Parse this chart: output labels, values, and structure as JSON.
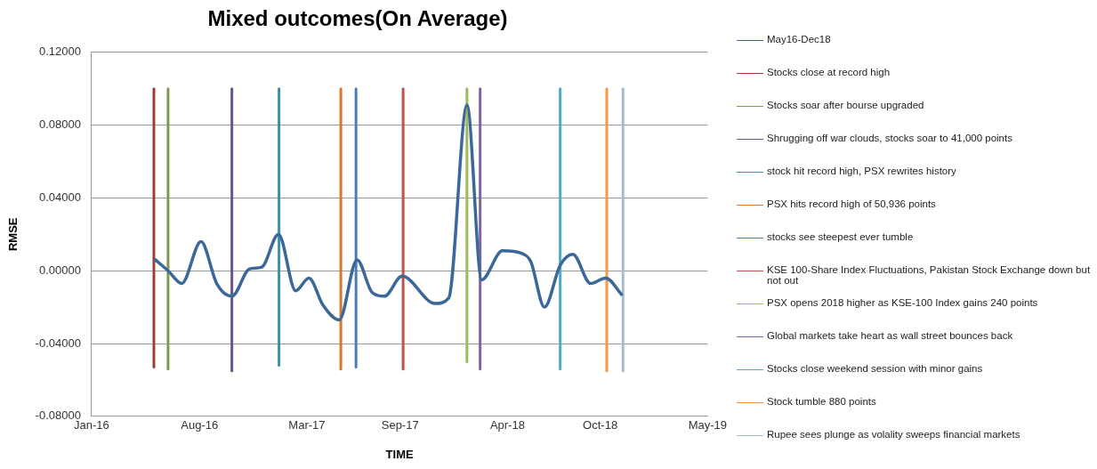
{
  "chart_data": {
    "type": "line",
    "title": "Mixed outcomes(On Average)",
    "xlabel": "TIME",
    "ylabel": "RMSE",
    "legend": "right",
    "grid": "y",
    "marker": "none",
    "line_style": "solid",
    "xlim": [
      "2016-01-01",
      "2019-05-01"
    ],
    "xticks": [
      {
        "value": "2016-01-01",
        "label": "Jan-16"
      },
      {
        "value": "2016-08-01",
        "label": "Aug-16"
      },
      {
        "value": "2017-03-01",
        "label": "Mar-17"
      },
      {
        "value": "2017-09-01",
        "label": "Sep-17"
      },
      {
        "value": "2018-04-01",
        "label": "Apr-18"
      },
      {
        "value": "2018-10-01",
        "label": "Oct-18"
      },
      {
        "value": "2019-05-01",
        "label": "May-19"
      }
    ],
    "ylim": [
      -0.08,
      0.12
    ],
    "yticks": [
      {
        "value": -0.08,
        "label": "-0.08000"
      },
      {
        "value": -0.04,
        "label": "-0.04000"
      },
      {
        "value": 0,
        "label": "0.00000"
      },
      {
        "value": 0.04,
        "label": "0.04000"
      },
      {
        "value": 0.08,
        "label": "0.08000"
      },
      {
        "value": 0.12,
        "label": "0.12000"
      }
    ],
    "series": [
      {
        "name": "May16-Dec18",
        "color": "#3c6899",
        "x": [
          "2016-05-06",
          "2016-05-31",
          "2016-06-27",
          "2016-08-04",
          "2016-09-04",
          "2016-10-04",
          "2016-11-08",
          "2016-12-02",
          "2017-01-04",
          "2017-02-07",
          "2017-03-05",
          "2017-04-02",
          "2017-05-04",
          "2017-06-08",
          "2017-07-08",
          "2017-08-01",
          "2017-09-05",
          "2017-11-09",
          "2017-12-06",
          "2018-01-11",
          "2018-02-09",
          "2018-03-22",
          "2018-04-30",
          "2018-05-17",
          "2018-06-13",
          "2018-07-14",
          "2018-08-08",
          "2018-09-12",
          "2018-10-12",
          "2018-11-12"
        ],
        "values": [
          0.006,
          0,
          -0.007,
          0.016,
          -0.007,
          -0.014,
          0.001,
          0.002,
          0.02,
          -0.011,
          -0.004,
          -0.019,
          -0.027,
          0.006,
          -0.012,
          -0.014,
          -0.003,
          -0.018,
          -0.015,
          0.091,
          -0.005,
          0.011,
          0.0095,
          0.005,
          -0.02,
          0.003,
          0.009,
          -0.007,
          -0.004,
          -0.013
        ]
      },
      {
        "name": "Stocks close at record high",
        "color": "#a33b39",
        "x": [
          "2016-05-03",
          "2016-05-03"
        ],
        "values": [
          -0.053,
          0.1
        ]
      },
      {
        "name": "Stocks soar after bourse upgraded",
        "color": "#809b48",
        "x": [
          "2016-05-31",
          "2016-05-31"
        ],
        "values": [
          -0.054,
          0.1
        ]
      },
      {
        "name": "Shrugging off war clouds, stocks soar to 41,000 points",
        "color": "#69548a",
        "x": [
          "2016-10-04",
          "2016-10-04"
        ],
        "values": [
          -0.055,
          0.1
        ]
      },
      {
        "name": "stock hit record high, PSX rewrites history",
        "color": "#3e8fa3",
        "x": [
          "2017-01-05",
          "2017-01-05"
        ],
        "values": [
          -0.052,
          0.1
        ]
      },
      {
        "name": "PSX hits record high of 50,936 points",
        "color": "#d9772e",
        "x": [
          "2017-05-07",
          "2017-05-07"
        ],
        "values": [
          -0.054,
          0.1
        ]
      },
      {
        "name": "stocks see steepest ever tumble",
        "color": "#4a7ebb",
        "x": [
          "2017-06-06",
          "2017-06-06"
        ],
        "values": [
          -0.053,
          0.1
        ]
      },
      {
        "name": "KSE 100-Share Index Fluctuations, Pakistan Stock Exchange down but not out",
        "color": "#c0504d",
        "x": [
          "2017-09-07",
          "2017-09-07"
        ],
        "values": [
          -0.054,
          0.1
        ]
      },
      {
        "name": "PSX opens 2018 higher as KSE-100 Index gains 240 points",
        "color": "#9bbb59",
        "x": [
          "2018-01-11",
          "2018-01-11"
        ],
        "values": [
          -0.05,
          0.1
        ]
      },
      {
        "name": "Global markets take heart as wall street bounces back",
        "color": "#8064a2",
        "x": [
          "2018-02-06",
          "2018-02-06"
        ],
        "values": [
          -0.054,
          0.1
        ]
      },
      {
        "name": "Stocks close weekend session with minor gains",
        "color": "#4bacc6",
        "x": [
          "2018-07-14",
          "2018-07-14"
        ],
        "values": [
          -0.054,
          0.1
        ]
      },
      {
        "name": "Stock tumble 880 points",
        "color": "#f79646",
        "x": [
          "2018-10-14",
          "2018-10-14"
        ],
        "values": [
          -0.055,
          0.1
        ]
      },
      {
        "name": "Rupee sees plunge as volality sweeps financial markets",
        "color": "#a5b9d9",
        "x": [
          "2018-11-15",
          "2018-11-15"
        ],
        "values": [
          -0.055,
          0.1
        ]
      }
    ]
  }
}
